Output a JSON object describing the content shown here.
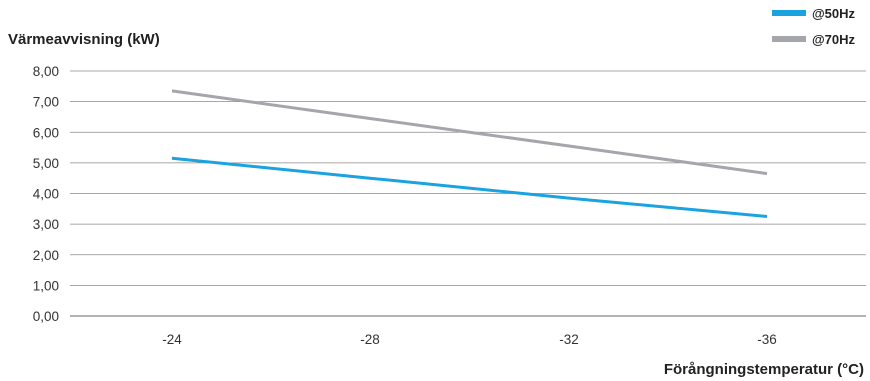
{
  "chart_data": {
    "type": "line",
    "ylabel": "Värmeavvisning (kW)",
    "xlabel": "Förångningstemperatur (°C)",
    "categories": [
      "-24",
      "-28",
      "-32",
      "-36"
    ],
    "ylim": [
      0,
      8
    ],
    "yticks": [
      "0,00",
      "1,00",
      "2,00",
      "3,00",
      "4,00",
      "5,00",
      "6,00",
      "7,00",
      "8,00"
    ],
    "grid": true,
    "legend_position": "top-right",
    "series": [
      {
        "name": "@50Hz",
        "color": "#1aa3e0",
        "values": [
          5.15,
          4.5,
          3.85,
          3.25
        ]
      },
      {
        "name": "@70Hz",
        "color": "#a4a6ab",
        "values": [
          7.35,
          6.45,
          5.55,
          4.65
        ]
      }
    ]
  }
}
